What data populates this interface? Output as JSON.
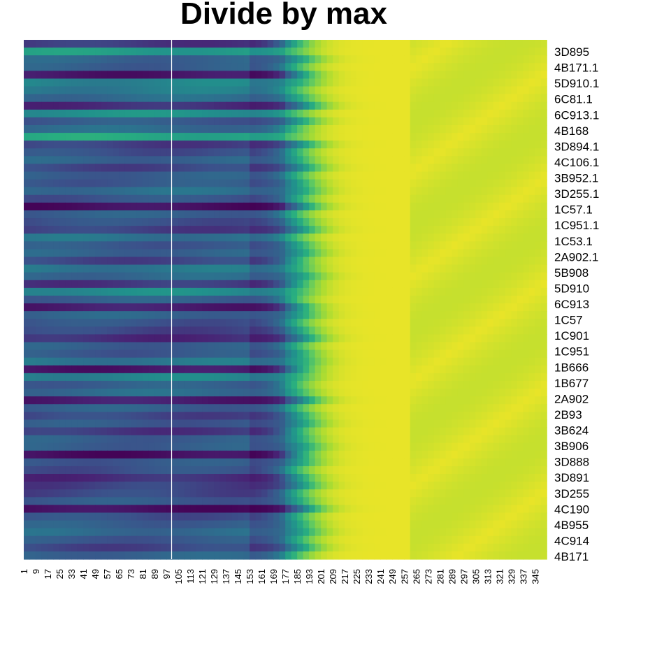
{
  "chart_data": {
    "type": "heatmap",
    "title": "Divide by max",
    "colormap": "viridis",
    "colors": {
      "low": "#440154",
      "mid": "#21908C",
      "high": "#FDE725",
      "divider": "#FFFFFF"
    },
    "row_labels": [
      "3D895",
      "4B171.1",
      "5D910.1",
      "6C81.1",
      "6C913.1",
      "4B168",
      "3D894.1",
      "4C106.1",
      "3B952.1",
      "3D255.1",
      "1C57.1",
      "1C951.1",
      "1C53.1",
      "2A902.1",
      "5B908",
      "5D910",
      "6C913",
      "1C57",
      "1C901",
      "1C951",
      "1B666",
      "1B677",
      "2A902",
      "2B93",
      "3B624",
      "3B906",
      "3D888",
      "3D891",
      "3D255",
      "4C190",
      "4B955",
      "4C914",
      "4B171"
    ],
    "col_labels": [
      "1",
      "9",
      "17",
      "25",
      "33",
      "41",
      "49",
      "57",
      "65",
      "73",
      "81",
      "89",
      "97",
      "105",
      "113",
      "121",
      "129",
      "137",
      "145",
      "153",
      "161",
      "169",
      "177",
      "185",
      "193",
      "201",
      "209",
      "217",
      "225",
      "233",
      "241",
      "249",
      "257",
      "265",
      "273",
      "281",
      "289",
      "297",
      "305",
      "313",
      "321",
      "329",
      "337",
      "345"
    ],
    "column_divider_after": "97",
    "baseline_levels": [
      0.18,
      0.55,
      0.32,
      0.3,
      0.08,
      0.45,
      0.42,
      0.35,
      0.15,
      0.5,
      0.28,
      0.35,
      0.6,
      0.2,
      0.25,
      0.32,
      0.22,
      0.3,
      0.28,
      0.36,
      0.26,
      0.05,
      0.3,
      0.25,
      0.2,
      0.38,
      0.28,
      0.32,
      0.22,
      0.4,
      0.34,
      0.18,
      0.48,
      0.3,
      0.1,
      0.32,
      0.26,
      0.22,
      0.15,
      0.3,
      0.28,
      0.4,
      0.08,
      0.45,
      0.3,
      0.35,
      0.1,
      0.3,
      0.22,
      0.28,
      0.18,
      0.3,
      0.3,
      0.05,
      0.28,
      0.25,
      0.15,
      0.2,
      0.22,
      0.28,
      0.05,
      0.25,
      0.3,
      0.35,
      0.28,
      0.22,
      0.32
    ]
  }
}
